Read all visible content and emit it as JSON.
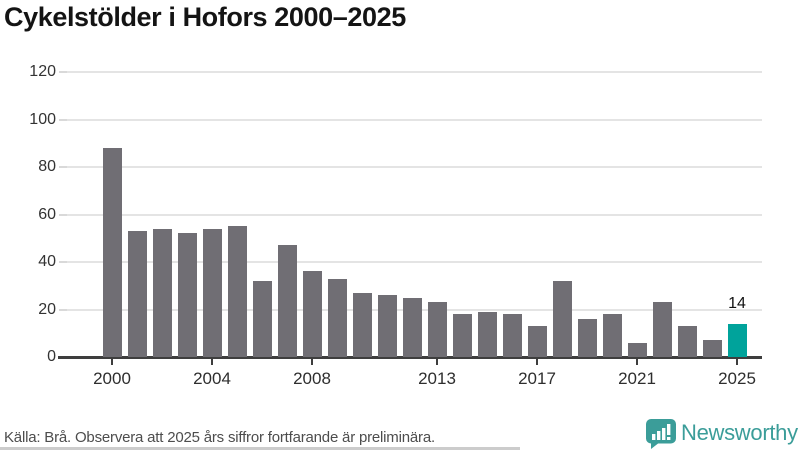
{
  "title": "Cykelstölder i Hofors 2000–2025",
  "footer": {
    "source_note": "Källa: Brå. Observera att 2025 års siffror fortfarande är preliminära."
  },
  "logo": {
    "name": "Newsworthy",
    "color": "#3b9d99"
  },
  "colors": {
    "bar_gray": "#706e74",
    "highlight_teal": "#00a39b",
    "gridline": "#e4e4e4",
    "axis": "#3e3e3e"
  },
  "chart_data": {
    "type": "bar",
    "title": "Cykelstölder i Hofors 2000–2025",
    "x": [
      2000,
      2001,
      2002,
      2003,
      2004,
      2005,
      2006,
      2007,
      2008,
      2009,
      2010,
      2011,
      2012,
      2013,
      2014,
      2015,
      2016,
      2017,
      2018,
      2019,
      2020,
      2021,
      2022,
      2023,
      2024,
      2025
    ],
    "values": [
      88,
      53,
      54,
      52,
      54,
      55,
      32,
      47,
      36,
      33,
      27,
      26,
      25,
      23,
      18,
      19,
      18,
      13,
      32,
      16,
      18,
      6,
      23,
      13,
      7,
      14
    ],
    "bar_color": "#706e74",
    "highlight_year": 2025,
    "highlight_color": "#00a39b",
    "highlight_value_label": "14",
    "xlabel": "",
    "ylabel": "",
    "ylim": [
      0,
      120
    ],
    "y_ticks": [
      0,
      20,
      40,
      60,
      80,
      100,
      120
    ],
    "x_ticks": [
      2000,
      2004,
      2008,
      2013,
      2017,
      2021,
      2025
    ],
    "grid": true,
    "legend": "none"
  }
}
